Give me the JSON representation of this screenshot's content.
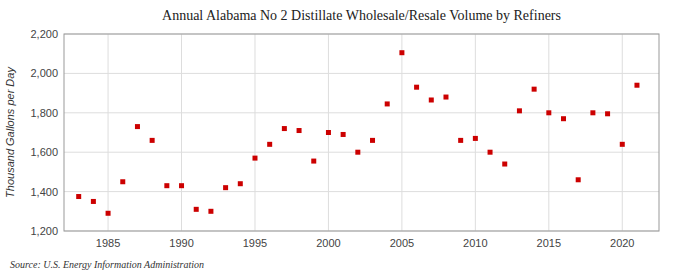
{
  "chart_data": {
    "type": "scatter",
    "title": "Annual Alabama No 2 Distillate Wholesale/Resale Volume by Refiners",
    "y_label": "Thousand Gallons per Day",
    "annotations": [
      "Source: U.S. Energy Information Administration"
    ],
    "x": [
      1983,
      1984,
      1985,
      1986,
      1987,
      1988,
      1989,
      1990,
      1991,
      1992,
      1993,
      1994,
      1995,
      1996,
      1997,
      1998,
      1999,
      2000,
      2001,
      2002,
      2003,
      2004,
      2005,
      2006,
      2007,
      2008,
      2009,
      2010,
      2011,
      2012,
      2013,
      2014,
      2015,
      2016,
      2017,
      2018,
      2019,
      2020,
      2021
    ],
    "values": [
      1375,
      1350,
      1290,
      1450,
      1730,
      1660,
      1430,
      1430,
      1310,
      1300,
      1420,
      1440,
      1570,
      1640,
      1720,
      1710,
      1555,
      1700,
      1690,
      1600,
      1660,
      1845,
      2105,
      1930,
      1865,
      1880,
      1660,
      1670,
      1600,
      1540,
      1810,
      1920,
      1800,
      1770,
      1460,
      1800,
      1795,
      1640,
      1940
    ],
    "color": "#cc0000",
    "marker": "square",
    "xlim": [
      1982,
      2022.5
    ],
    "ylim": [
      1200,
      2200
    ],
    "xticks": [
      1985,
      1990,
      1995,
      2000,
      2005,
      2010,
      2015,
      2020
    ],
    "yticks": [
      {
        "value": 1200,
        "label": "1,200"
      },
      {
        "value": 1400,
        "label": "1,400"
      },
      {
        "value": 1600,
        "label": "1,600"
      },
      {
        "value": 1800,
        "label": "1,800"
      },
      {
        "value": 2000,
        "label": "2,000"
      },
      {
        "value": 2200,
        "label": "2,200"
      }
    ],
    "grid": true
  }
}
